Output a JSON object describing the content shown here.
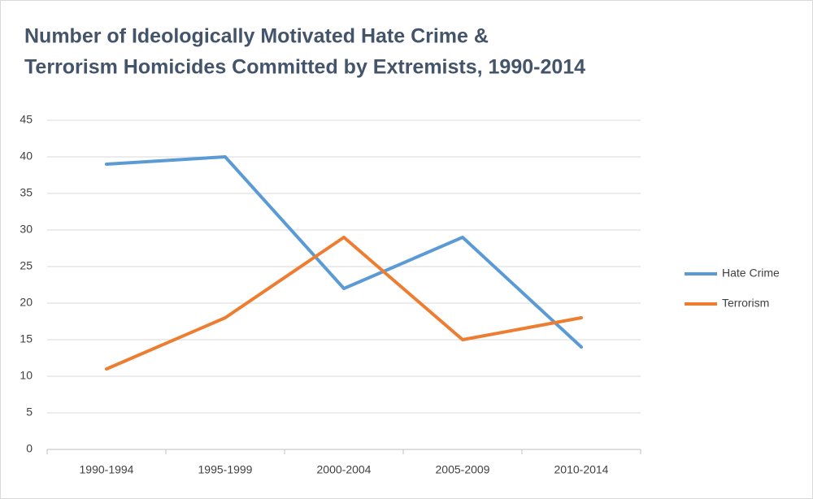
{
  "chart_data": {
    "type": "line",
    "title": [
      "Number of Ideologically Motivated Hate Crime &",
      "Terrorism Homicides Committed by Extremists, 1990-2014"
    ],
    "categories": [
      "1990-1994",
      "1995-1999",
      "2000-2004",
      "2005-2009",
      "2010-2014"
    ],
    "series": [
      {
        "name": "Hate Crime",
        "color": "#5b9bd5",
        "values": [
          39,
          40,
          22,
          29,
          14
        ]
      },
      {
        "name": "Terrorism",
        "color": "#ed7d31",
        "values": [
          11,
          18,
          29,
          15,
          18
        ]
      }
    ],
    "ylim": [
      0,
      45
    ],
    "yticks": [
      0,
      5,
      10,
      15,
      20,
      25,
      30,
      35,
      40,
      45
    ],
    "grid": true,
    "legend": "right"
  }
}
